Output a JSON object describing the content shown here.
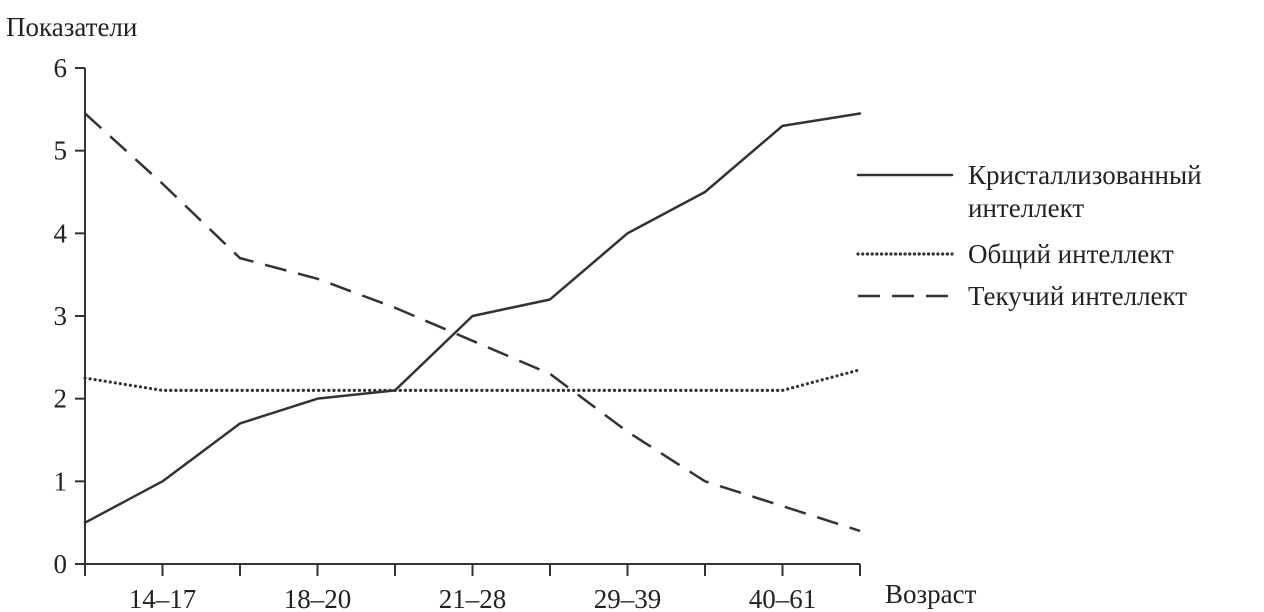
{
  "chart_data": {
    "type": "line",
    "title": "",
    "ylabel": "Показатели",
    "xlabel": "Возраст",
    "ylim": [
      0,
      6
    ],
    "yticks": [
      "0",
      "1",
      "2",
      "3",
      "4",
      "5",
      "6"
    ],
    "categories": [
      "14–17",
      "18–20",
      "21–28",
      "29–39",
      "40–61"
    ],
    "x_boundaries": [
      0,
      1,
      2,
      3,
      4,
      5,
      6,
      7,
      8,
      9,
      10
    ],
    "grid": false,
    "legend_position": "right",
    "series": [
      {
        "name": "Кристаллизованный интеллект",
        "name_lines": [
          "Кристаллизованный",
          "интеллект"
        ],
        "style": "solid",
        "color": "#333333",
        "points": [
          [
            0,
            0.5
          ],
          [
            1,
            1.0
          ],
          [
            2,
            1.7
          ],
          [
            3,
            2.0
          ],
          [
            4,
            2.1
          ],
          [
            5,
            3.0
          ],
          [
            6,
            3.2
          ],
          [
            7,
            4.0
          ],
          [
            8,
            4.5
          ],
          [
            9,
            5.3
          ],
          [
            10,
            5.45
          ]
        ]
      },
      {
        "name": "Общий интеллект",
        "name_lines": [
          "Общий интеллект"
        ],
        "style": "dotted",
        "color": "#333333",
        "points": [
          [
            0,
            2.25
          ],
          [
            1,
            2.1
          ],
          [
            2,
            2.1
          ],
          [
            3,
            2.1
          ],
          [
            4,
            2.1
          ],
          [
            5,
            2.1
          ],
          [
            6,
            2.1
          ],
          [
            7,
            2.1
          ],
          [
            8,
            2.1
          ],
          [
            9,
            2.1
          ],
          [
            10,
            2.35
          ]
        ]
      },
      {
        "name": "Текучий интеллект",
        "name_lines": [
          "Текучий интеллект"
        ],
        "style": "dashed",
        "color": "#333333",
        "points": [
          [
            0,
            5.45
          ],
          [
            1,
            4.6
          ],
          [
            2,
            3.7
          ],
          [
            3,
            3.45
          ],
          [
            4,
            3.1
          ],
          [
            5,
            2.7
          ],
          [
            6,
            2.3
          ],
          [
            7,
            1.6
          ],
          [
            8,
            1.0
          ],
          [
            9,
            0.7
          ],
          [
            10,
            0.4
          ]
        ]
      }
    ]
  }
}
